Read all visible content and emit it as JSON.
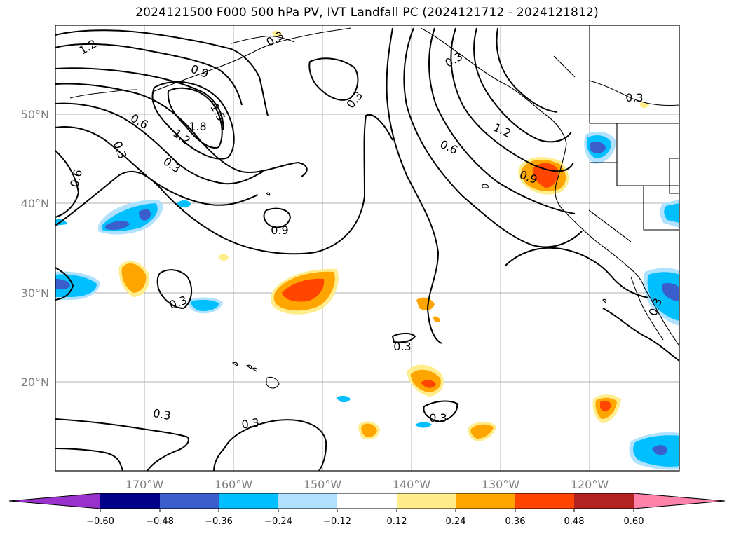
{
  "title": "2024121500 F000 500 hPa PV, IVT Landfall PC (2024121712 - 2024121812)",
  "map": {
    "lat_labels": [
      "50°N",
      "40°N",
      "30°N",
      "20°N"
    ],
    "lon_labels": [
      "170°W",
      "160°W",
      "150°W",
      "140°W",
      "130°W",
      "120°W"
    ],
    "contour_labels": [
      "1.2",
      "0.9",
      "1.5",
      "1.8",
      "0.6",
      "1.2",
      "0.3",
      "0.6",
      "0.3",
      "0.9",
      "0.3",
      "0.3",
      "1.2",
      "0.6",
      "0.9",
      "0.3",
      "0.3",
      "0.3",
      "0.3",
      "0.3",
      "0.3",
      "0.3",
      "0.3"
    ],
    "contour_label_decimal_note": "PV in PVU",
    "fill_colors": {
      "neg_060": "#9932cc",
      "neg_048": "#00008b",
      "neg_036": "#3a5fcd",
      "neg_024": "#00bfff",
      "neg_012": "#b0e2ff",
      "zero": "#ffffff",
      "pos_012": "#ffec8b",
      "pos_024": "#ffa500",
      "pos_036": "#ff4500",
      "pos_048": "#b22222",
      "pos_060": "#ff82ab"
    }
  },
  "colorbar": {
    "ticks": [
      "−0.60",
      "−0.48",
      "−0.36",
      "−0.24",
      "−0.12",
      "0.12",
      "0.24",
      "0.36",
      "0.48",
      "0.60"
    ],
    "segments": [
      "#9932cc",
      "#00008b",
      "#3a5fcd",
      "#00bfff",
      "#b0e2ff",
      "#ffffff",
      "#ffec8b",
      "#ffa500",
      "#ff4500",
      "#b22222",
      "#ff82ab"
    ]
  }
}
